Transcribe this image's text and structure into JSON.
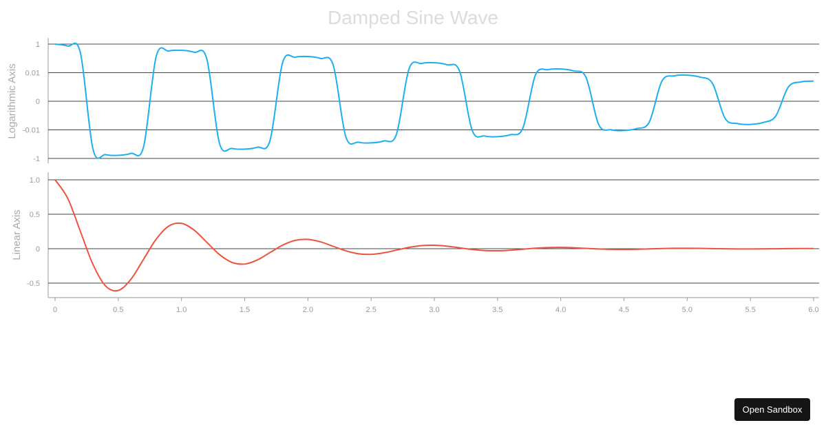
{
  "chart_data": [
    {
      "type": "line",
      "title": "Damped Sine Wave",
      "ylabel": "Logarithmic Axis",
      "xlabel": "",
      "yscale": "symlog",
      "yticks": [
        "1",
        "0.01",
        "0",
        "-0.01",
        "-1"
      ],
      "ytick_values": [
        1,
        0.01,
        0,
        -0.01,
        -1
      ],
      "xlim": [
        0,
        6
      ],
      "grid": "horizontal",
      "color": "#1aaff0"
    },
    {
      "type": "line",
      "ylabel": "Linear Axis",
      "xlabel": "",
      "yscale": "linear",
      "yticks": [
        "1.0",
        "0.5",
        "0",
        "-0.5"
      ],
      "ytick_values": [
        1,
        0.5,
        0,
        -0.5
      ],
      "ylim": [
        -0.7,
        1.1
      ],
      "xlim": [
        0,
        6
      ],
      "xticks": [
        "0",
        "0.5",
        "1.0",
        "1.5",
        "2.0",
        "2.5",
        "3.0",
        "3.5",
        "4.0",
        "4.5",
        "5.0",
        "5.5",
        "6.0"
      ],
      "xtick_values": [
        0,
        0.5,
        1,
        1.5,
        2,
        2.5,
        3,
        3.5,
        4,
        4.5,
        5,
        5.5,
        6
      ],
      "grid": "horizontal",
      "color": "#f0513c"
    }
  ],
  "series": {
    "x": [
      0,
      0.1,
      0.2,
      0.3,
      0.4,
      0.5,
      0.6,
      0.7,
      0.8,
      0.9,
      1.0,
      1.1,
      1.2,
      1.3,
      1.4,
      1.5,
      1.6,
      1.7,
      1.8,
      1.9,
      2.0,
      2.1,
      2.2,
      2.3,
      2.4,
      2.5,
      2.6,
      2.7,
      2.8,
      2.9,
      3.0,
      3.1,
      3.2,
      3.3,
      3.4,
      3.5,
      3.6,
      3.7,
      3.8,
      3.9,
      4.0,
      4.1,
      4.2,
      4.3,
      4.4,
      4.5,
      4.6,
      4.7,
      4.8,
      4.9,
      5.0,
      5.1,
      5.2,
      5.3,
      5.4,
      5.5,
      5.6,
      5.7,
      5.8,
      5.9,
      6.0
    ],
    "y": [
      1,
      0.732,
      0.253,
      -0.2289,
      -0.5423,
      -0.6065,
      -0.444,
      -0.1535,
      0.1388,
      0.3289,
      0.3679,
      0.2693,
      0.0931,
      -0.0842,
      -0.1995,
      -0.2231,
      -0.1633,
      -0.0565,
      0.0511,
      0.121,
      0.1353,
      0.0991,
      0.0342,
      -0.031,
      -0.0734,
      -0.0821,
      -0.0601,
      -0.0208,
      0.0188,
      0.0445,
      0.0498,
      0.0364,
      0.0126,
      -0.0114,
      -0.027,
      -0.0302,
      -0.0221,
      -0.0076,
      0.0069,
      0.0163,
      0.0183,
      0.0134,
      0.0046,
      -0.0042,
      -0.01,
      -0.0111,
      -0.0082,
      -0.0028,
      0.0025,
      0.006,
      0.0067,
      0.0049,
      0.0017,
      -0.0015,
      -0.0036,
      -0.0041,
      -0.003,
      -0.001,
      0.0009,
      0.0022,
      0.0025
    ]
  },
  "button": {
    "label": "Open Sandbox"
  }
}
